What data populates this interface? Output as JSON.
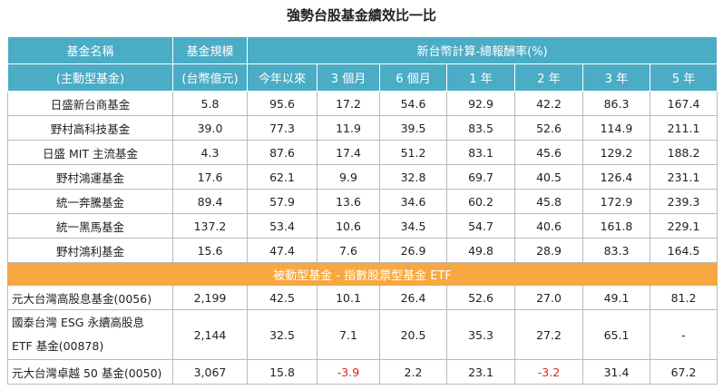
{
  "title": "強勢台股基金績效比一比",
  "header": {
    "row1": [
      "基金名稱",
      "基金規模",
      "新台幣計算-總報酬率(%)"
    ],
    "row2": [
      "(主動型基金)",
      "(台幣億元)",
      "今年以來",
      "3 個月",
      "6 個月",
      "1 年",
      "2 年",
      "3 年",
      "5 年"
    ]
  },
  "active_rows": [
    [
      [
        "日盛新台商基金"
      ],
      "5.8",
      "95.6",
      "17.2",
      "54.6",
      "92.9",
      "42.2",
      "86.3",
      "167.4"
    ],
    [
      [
        "野村高科技基金"
      ],
      "39.0",
      "77.3",
      "11.9",
      "39.5",
      "83.5",
      "52.6",
      "114.9",
      "211.1"
    ],
    [
      [
        "日盛 MIT 主流基金"
      ],
      "4.3",
      "87.6",
      "17.4",
      "51.2",
      "83.1",
      "45.6",
      "129.2",
      "188.2"
    ],
    [
      [
        "野村鴻運基金"
      ],
      "17.6",
      "62.1",
      "9.9",
      "32.8",
      "69.7",
      "40.5",
      "126.4",
      "231.1"
    ],
    [
      [
        "統一奔騰基金"
      ],
      "89.4",
      "57.9",
      "13.6",
      "34.6",
      "60.2",
      "45.8",
      "172.9",
      "239.3"
    ],
    [
      [
        "統一黑馬基金"
      ],
      "137.2",
      "53.4",
      "10.6",
      "34.5",
      "54.7",
      "40.6",
      "161.8",
      "229.1"
    ],
    [
      [
        "野村鴻利基金"
      ],
      "15.6",
      "47.4",
      "7.6",
      "26.9",
      "49.8",
      "28.9",
      "83.3",
      "164.5"
    ]
  ],
  "section_label": "被動型基金 - 指數股票型基金 ETF",
  "passive_rows": [
    [
      [
        "元大台灣高股息基金(0056)"
      ],
      "2,199",
      "42.5",
      "10.1",
      "26.4",
      "52.6",
      "27.0",
      "49.1",
      "81.2"
    ],
    [
      [
        "國泰台灣 ESG 永續高股息",
        "ETF 基金(00878)"
      ],
      "2,144",
      "32.5",
      "7.1",
      "20.5",
      "35.3",
      "27.2",
      "65.1",
      "-"
    ],
    [
      [
        "元大台灣卓越 50 基金(0050)"
      ],
      "3,067",
      "15.8",
      "-3.9",
      "2.2",
      "23.1",
      "-3.2",
      "31.4",
      "67.2"
    ]
  ]
}
